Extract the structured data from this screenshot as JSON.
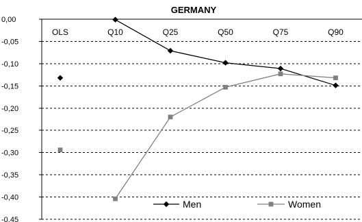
{
  "chart_data": {
    "type": "line",
    "title": "GERMANY",
    "categories": [
      "OLS",
      "Q10",
      "Q25",
      "Q50",
      "Q75",
      "Q90"
    ],
    "ylim": [
      -0.45,
      0.0
    ],
    "yticks": [
      0.0,
      -0.05,
      -0.1,
      -0.15,
      -0.2,
      -0.25,
      -0.3,
      -0.35,
      -0.4,
      -0.45
    ],
    "ytick_labels": [
      "0,00",
      "-0,05",
      "-0,10",
      "-0,15",
      "-0,20",
      "-0,25",
      "-0,30",
      "-0,35",
      "-0,40",
      "-0,45"
    ],
    "grid": true,
    "legend_position": "bottom-right",
    "series": [
      {
        "name": "Men",
        "values": [
          -0.132,
          -0.001,
          -0.071,
          -0.098,
          -0.111,
          -0.149
        ],
        "color": "#000000",
        "marker": "diamond",
        "connect_from": 1
      },
      {
        "name": "Women",
        "values": [
          -0.294,
          -0.404,
          -0.22,
          -0.153,
          -0.123,
          -0.132
        ],
        "color": "#808080",
        "marker": "square",
        "connect_from": 1
      }
    ]
  }
}
